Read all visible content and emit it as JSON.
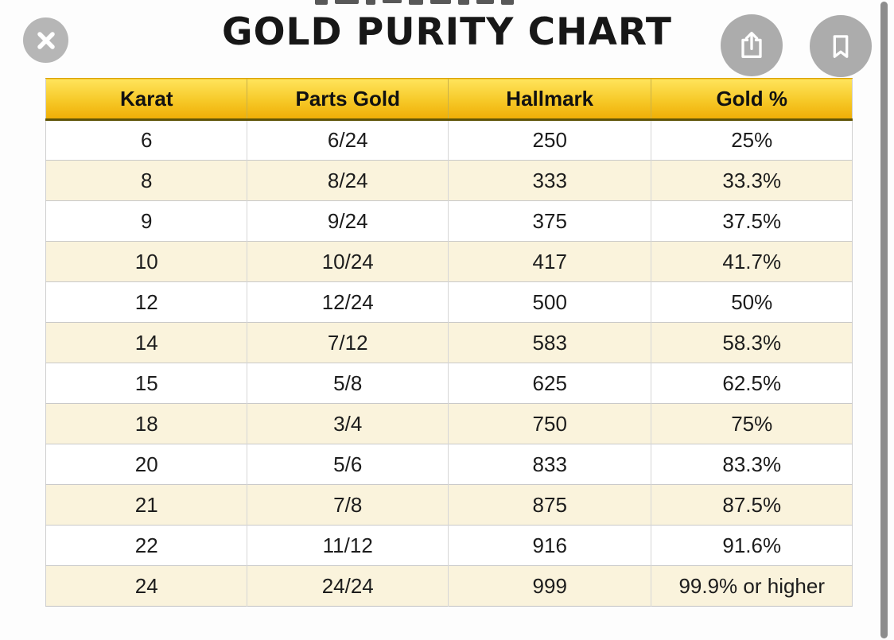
{
  "title": "GOLD PURITY CHART",
  "toolbar": {
    "close_icon": "close-x",
    "share_icon": "ios-share",
    "bookmark_icon": "bookmark"
  },
  "chart_data": {
    "type": "table",
    "title": "GOLD PURITY CHART",
    "columns": [
      "Karat",
      "Parts Gold",
      "Hallmark",
      "Gold %"
    ],
    "rows": [
      [
        "6",
        "6/24",
        "250",
        "25%"
      ],
      [
        "8",
        "8/24",
        "333",
        "33.3%"
      ],
      [
        "9",
        "9/24",
        "375",
        "37.5%"
      ],
      [
        "10",
        "10/24",
        "417",
        "41.7%"
      ],
      [
        "12",
        "12/24",
        "500",
        "50%"
      ],
      [
        "14",
        "7/12",
        "583",
        "58.3%"
      ],
      [
        "15",
        "5/8",
        "625",
        "62.5%"
      ],
      [
        "18",
        "3/4",
        "750",
        "75%"
      ],
      [
        "20",
        "5/6",
        "833",
        "83.3%"
      ],
      [
        "21",
        "7/8",
        "875",
        "87.5%"
      ],
      [
        "22",
        "11/12",
        "916",
        "91.6%"
      ],
      [
        "24",
        "24/24",
        "999",
        "99.9% or higher"
      ]
    ]
  },
  "colors": {
    "header_gradient_top": "#ffe45c",
    "header_gradient_bottom": "#efae06",
    "header_underline": "#5f5408",
    "alt_row": "#faf3dc",
    "grid_line": "#c9c9c9",
    "button_gray": "#b1b1b1",
    "scrollbar_gray": "#8d8d8d",
    "title_color": "#171717"
  }
}
